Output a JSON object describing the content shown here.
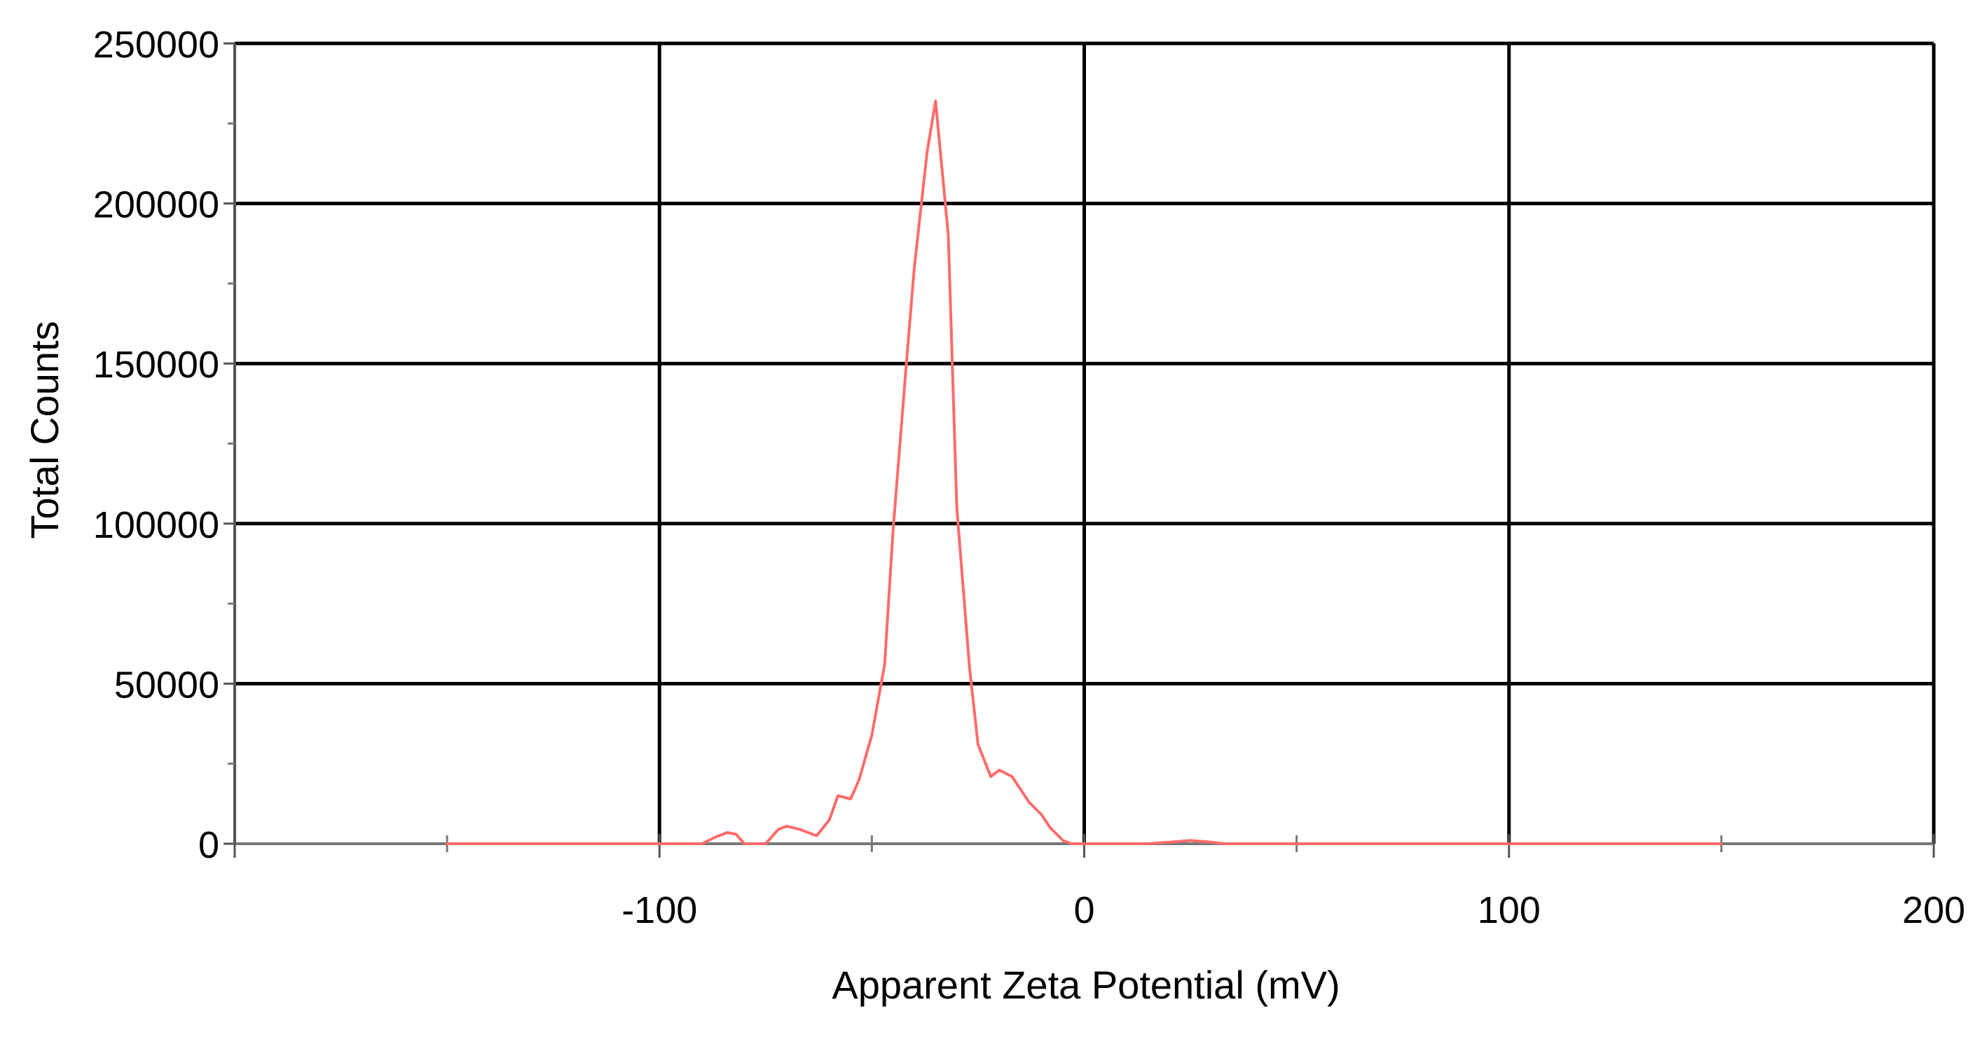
{
  "chart_data": {
    "type": "line",
    "title": "",
    "xlabel": "Apparent Zeta Potential (mV)",
    "ylabel": "Total Counts",
    "xlim": [
      -200,
      200
    ],
    "ylim": [
      0,
      250000
    ],
    "grid": true,
    "x_ticks": [
      -100,
      0,
      100,
      200
    ],
    "x_tick_labels": [
      "-100",
      "0",
      "100",
      "200"
    ],
    "x_minor_ticks": [
      -150,
      -50,
      50,
      150
    ],
    "y_ticks": [
      0,
      50000,
      100000,
      150000,
      200000,
      250000
    ],
    "y_tick_labels": [
      "0",
      "50000",
      "100000",
      "150000",
      "200000",
      "250000"
    ],
    "y_minor_ticks": [
      25000,
      75000,
      125000,
      175000,
      225000
    ],
    "line_color": "#ff6b6b",
    "series": [
      {
        "name": "Total Counts",
        "x": [
          -150,
          -120,
          -100,
          -95,
          -90,
          -87,
          -84,
          -82,
          -80,
          -77,
          -75,
          -72,
          -70,
          -67,
          -65,
          -63,
          -60,
          -58,
          -55,
          -53,
          -50,
          -47,
          -45,
          -42,
          -40,
          -37,
          -35,
          -32,
          -30,
          -27,
          -25,
          -22,
          -20,
          -17,
          -15,
          -13,
          -10,
          -8,
          -5,
          -3,
          -1,
          2,
          5,
          10,
          15,
          20,
          25,
          30,
          33,
          35,
          37,
          40,
          43,
          45,
          50,
          60,
          80,
          100,
          120,
          150
        ],
        "values": [
          0,
          0,
          0,
          0,
          0,
          2000,
          3500,
          3000,
          0,
          0,
          0,
          4500,
          5500,
          4500,
          3500,
          2500,
          7500,
          15000,
          14000,
          20000,
          34000,
          56000,
          98000,
          148000,
          180000,
          216000,
          232000,
          190000,
          105000,
          55000,
          31000,
          21000,
          23000,
          21000,
          17000,
          13000,
          9000,
          5000,
          1000,
          0,
          0,
          0,
          0,
          0,
          0,
          500,
          1000,
          500,
          0,
          0,
          0,
          0,
          0,
          0,
          0,
          0,
          0,
          0,
          0,
          0
        ]
      }
    ]
  }
}
